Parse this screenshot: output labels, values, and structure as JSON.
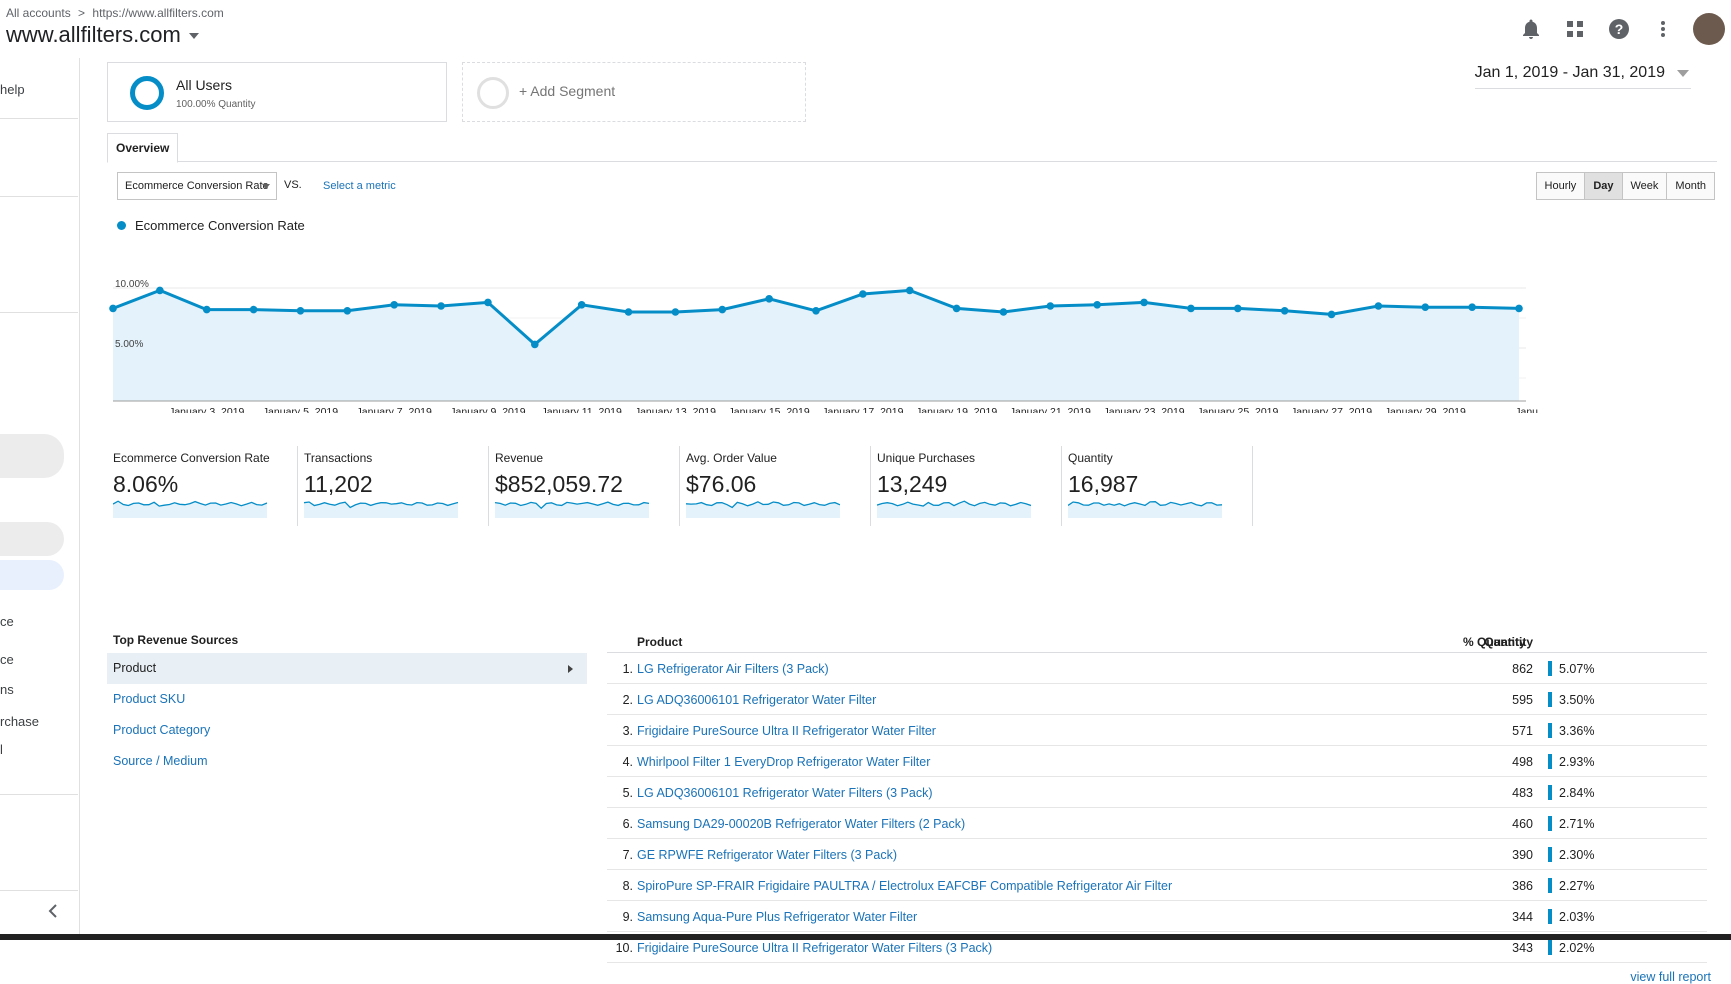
{
  "header": {
    "breadcrumb": [
      "All accounts",
      ">",
      "https://www.allfilters.com"
    ],
    "property": "www.allfilters.com",
    "icons": [
      "bell-icon",
      "apps-grid-icon",
      "help-icon",
      "more-vert-icon",
      "avatar"
    ]
  },
  "leftnav": {
    "items": [
      "help",
      "ce",
      "ce",
      "ns",
      "rchase",
      "l"
    ],
    "collapse_icon": "chevron-left-icon"
  },
  "segments": {
    "active": {
      "name": "All Users",
      "sub": "100.00% Quantity"
    },
    "add_label": "+ Add Segment"
  },
  "date_range": "Jan 1, 2019 - Jan 31, 2019",
  "tabs": [
    "Overview"
  ],
  "controls": {
    "metric": "Ecommerce Conversion Rate",
    "vs": "VS.",
    "select_metric": "Select a metric",
    "granularity": [
      "Hourly",
      "Day",
      "Week",
      "Month"
    ],
    "granularity_active": "Day"
  },
  "chart_data": {
    "type": "area",
    "series": [
      {
        "name": "Ecommerce Conversion Rate",
        "color": "#058dc7",
        "values": [
          8.3,
          9.8,
          8.2,
          8.2,
          8.1,
          8.1,
          8.6,
          8.5,
          8.8,
          5.3,
          8.6,
          8.0,
          8.0,
          8.2,
          9.1,
          8.1,
          9.5,
          9.8,
          8.3,
          8.0,
          8.5,
          8.6,
          8.8,
          8.3,
          8.3,
          8.1,
          7.8,
          8.5,
          8.4,
          8.4,
          8.3
        ]
      }
    ],
    "x_tick_labels": [
      "...",
      "January 3, 2019",
      "January 5, 2019",
      "January 7, 2019",
      "January 9, 2019",
      "January 11, 2019",
      "January 13, 2019",
      "January 15, 2019",
      "January 17, 2019",
      "January 19, 2019",
      "January 21, 2019",
      "January 23, 2019",
      "January 25, 2019",
      "January 27, 2019",
      "January 29, 2019",
      "Janu..."
    ],
    "y_tick_labels": [
      "10.00%",
      "5.00%"
    ],
    "ylim": [
      0,
      10
    ],
    "grid": true
  },
  "kpis": [
    {
      "label": "Ecommerce Conversion Rate",
      "value": "8.06%"
    },
    {
      "label": "Transactions",
      "value": "11,202"
    },
    {
      "label": "Revenue",
      "value": "$852,059.72"
    },
    {
      "label": "Avg. Order Value",
      "value": "$76.06"
    },
    {
      "label": "Unique Purchases",
      "value": "13,249"
    },
    {
      "label": "Quantity",
      "value": "16,987"
    }
  ],
  "top_revenue": {
    "title": "Top Revenue Sources",
    "items": [
      "Product",
      "Product SKU",
      "Product Category",
      "Source / Medium"
    ]
  },
  "products": {
    "headers": {
      "product": "Product",
      "quantity": "Quantity",
      "pct": "% Quantity"
    },
    "rows": [
      {
        "n": "1.",
        "name": "LG Refrigerator Air Filters (3 Pack)",
        "qty": "862",
        "pct": "5.07%"
      },
      {
        "n": "2.",
        "name": "LG ADQ36006101 Refrigerator Water Filter",
        "qty": "595",
        "pct": "3.50%"
      },
      {
        "n": "3.",
        "name": "Frigidaire PureSource Ultra II Refrigerator Water Filter",
        "qty": "571",
        "pct": "3.36%"
      },
      {
        "n": "4.",
        "name": "Whirlpool Filter 1 EveryDrop Refrigerator Water Filter",
        "qty": "498",
        "pct": "2.93%"
      },
      {
        "n": "5.",
        "name": "LG ADQ36006101 Refrigerator Water Filters (3 Pack)",
        "qty": "483",
        "pct": "2.84%"
      },
      {
        "n": "6.",
        "name": "Samsung DA29-00020B Refrigerator Water Filters (2 Pack)",
        "qty": "460",
        "pct": "2.71%"
      },
      {
        "n": "7.",
        "name": "GE RPWFE Refrigerator Water Filters (3 Pack)",
        "qty": "390",
        "pct": "2.30%"
      },
      {
        "n": "8.",
        "name": "SpiroPure SP-FRAIR Frigidaire PAULTRA / Electrolux EAFCBF Compatible Refrigerator Air Filter",
        "qty": "386",
        "pct": "2.27%"
      },
      {
        "n": "9.",
        "name": "Samsung Aqua-Pure Plus Refrigerator Water Filter",
        "qty": "344",
        "pct": "2.03%"
      },
      {
        "n": "10.",
        "name": "Frigidaire PureSource Ultra II Refrigerator Water Filters (3 Pack)",
        "qty": "343",
        "pct": "2.02%"
      }
    ],
    "view_full": "view full report"
  }
}
